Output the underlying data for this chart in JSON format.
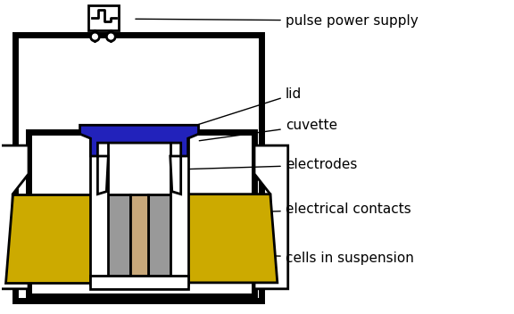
{
  "bg_color": "#ffffff",
  "line_color": "#000000",
  "lw": 2.0,
  "tlw": 5.0,
  "blue_color": "#2222bb",
  "gold_color": "#ccaa00",
  "gray_color": "#999999",
  "tan_color": "#c8a87a",
  "labels": {
    "pulse_power_supply": "pulse power supply",
    "lid": "lid",
    "cuvette": "cuvette",
    "electrodes": "electrodes",
    "electrical_contacts": "electrical contacts",
    "cells_in_suspension": "cells in suspension"
  },
  "font_size": 11
}
